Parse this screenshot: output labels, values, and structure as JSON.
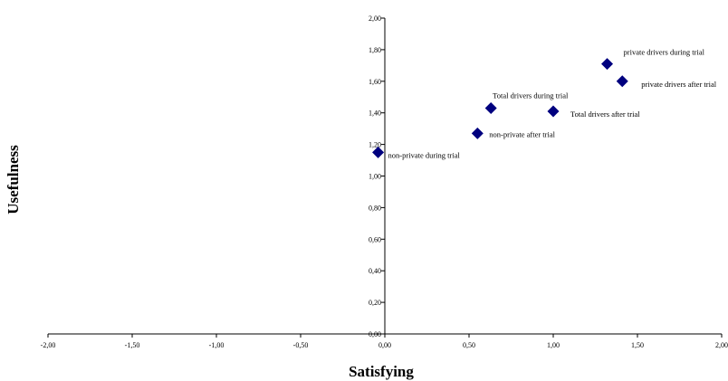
{
  "chart_data": {
    "type": "scatter",
    "xlabel": "Satisfying",
    "ylabel": "Usefulness",
    "xlim": [
      -2,
      2
    ],
    "ylim": [
      0,
      2
    ],
    "x_ticks": [
      "-2,00",
      "-1,50",
      "-1,00",
      "-0,50",
      "0,00",
      "0,50",
      "1,00",
      "1,50",
      "2,00"
    ],
    "y_ticks": [
      "0,00",
      "0,20",
      "0,40",
      "0,60",
      "0,80",
      "1,00",
      "1,20",
      "1,40",
      "1,60",
      "1,80",
      "2,00"
    ],
    "grid": false,
    "marker_color": "#00007f",
    "points": [
      {
        "label": "non-private during trial",
        "x": -0.04,
        "y": 1.15
      },
      {
        "label": "non-private after trial",
        "x": 0.55,
        "y": 1.27
      },
      {
        "label": "Total drivers during trial",
        "x": 0.63,
        "y": 1.43
      },
      {
        "label": "Total drivers after trial",
        "x": 1.0,
        "y": 1.41
      },
      {
        "label": "private drivers during trial",
        "x": 1.32,
        "y": 1.71
      },
      {
        "label": "private drivers after trial",
        "x": 1.41,
        "y": 1.6
      }
    ]
  }
}
